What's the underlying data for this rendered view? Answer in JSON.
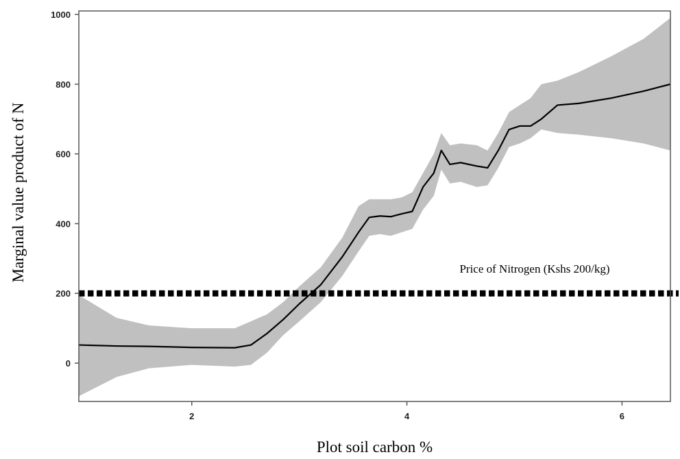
{
  "chart_data": {
    "type": "line",
    "title": "",
    "xlabel": "Plot soil carbon %",
    "ylabel": "Marginal value product of N",
    "xlim": [
      0.95,
      6.45
    ],
    "ylim": [
      -110,
      1010
    ],
    "x_ticks": [
      2,
      4,
      6
    ],
    "y_ticks": [
      0,
      200,
      400,
      600,
      800,
      1000
    ],
    "grid": false,
    "legend": "none",
    "series": [
      {
        "type": "line",
        "x": [
          0.95,
          1.3,
          1.6,
          2.0,
          2.4,
          2.55,
          2.7,
          2.85,
          3.0,
          3.2,
          3.4,
          3.55,
          3.65,
          3.75,
          3.85,
          3.95,
          4.05,
          4.15,
          4.25,
          4.32,
          4.4,
          4.5,
          4.65,
          4.75,
          4.85,
          4.95,
          5.05,
          5.15,
          5.25,
          5.4,
          5.6,
          5.9,
          6.2,
          6.45
        ],
        "y": [
          52,
          49,
          48,
          45,
          44,
          52,
          85,
          125,
          170,
          225,
          305,
          375,
          418,
          422,
          420,
          428,
          435,
          505,
          545,
          610,
          570,
          575,
          565,
          560,
          610,
          670,
          680,
          680,
          700,
          740,
          745,
          760,
          780,
          800
        ]
      },
      {
        "type": "band",
        "x": [
          0.95,
          1.3,
          1.6,
          2.0,
          2.4,
          2.55,
          2.7,
          2.85,
          3.0,
          3.2,
          3.4,
          3.55,
          3.65,
          3.75,
          3.85,
          3.95,
          4.05,
          4.15,
          4.25,
          4.32,
          4.4,
          4.5,
          4.65,
          4.75,
          4.85,
          4.95,
          5.05,
          5.15,
          5.25,
          5.4,
          5.6,
          5.9,
          6.2,
          6.45
        ],
        "upper": [
          195,
          130,
          108,
          100,
          100,
          120,
          140,
          175,
          220,
          275,
          360,
          450,
          470,
          470,
          470,
          475,
          490,
          545,
          600,
          660,
          625,
          630,
          625,
          610,
          660,
          720,
          740,
          760,
          800,
          810,
          835,
          880,
          930,
          990
        ],
        "lower": [
          -95,
          -40,
          -15,
          -5,
          -10,
          -5,
          30,
          80,
          120,
          175,
          250,
          320,
          365,
          370,
          365,
          375,
          385,
          440,
          480,
          555,
          515,
          520,
          505,
          510,
          560,
          620,
          630,
          645,
          670,
          660,
          655,
          645,
          630,
          610
        ]
      }
    ],
    "reference_line": {
      "y": 200,
      "label": "Price of Nitrogen (Kshs 200/kg)"
    },
    "colors": {
      "band": "#c0c0c0",
      "line": "#000000",
      "axis": "#555555"
    }
  }
}
